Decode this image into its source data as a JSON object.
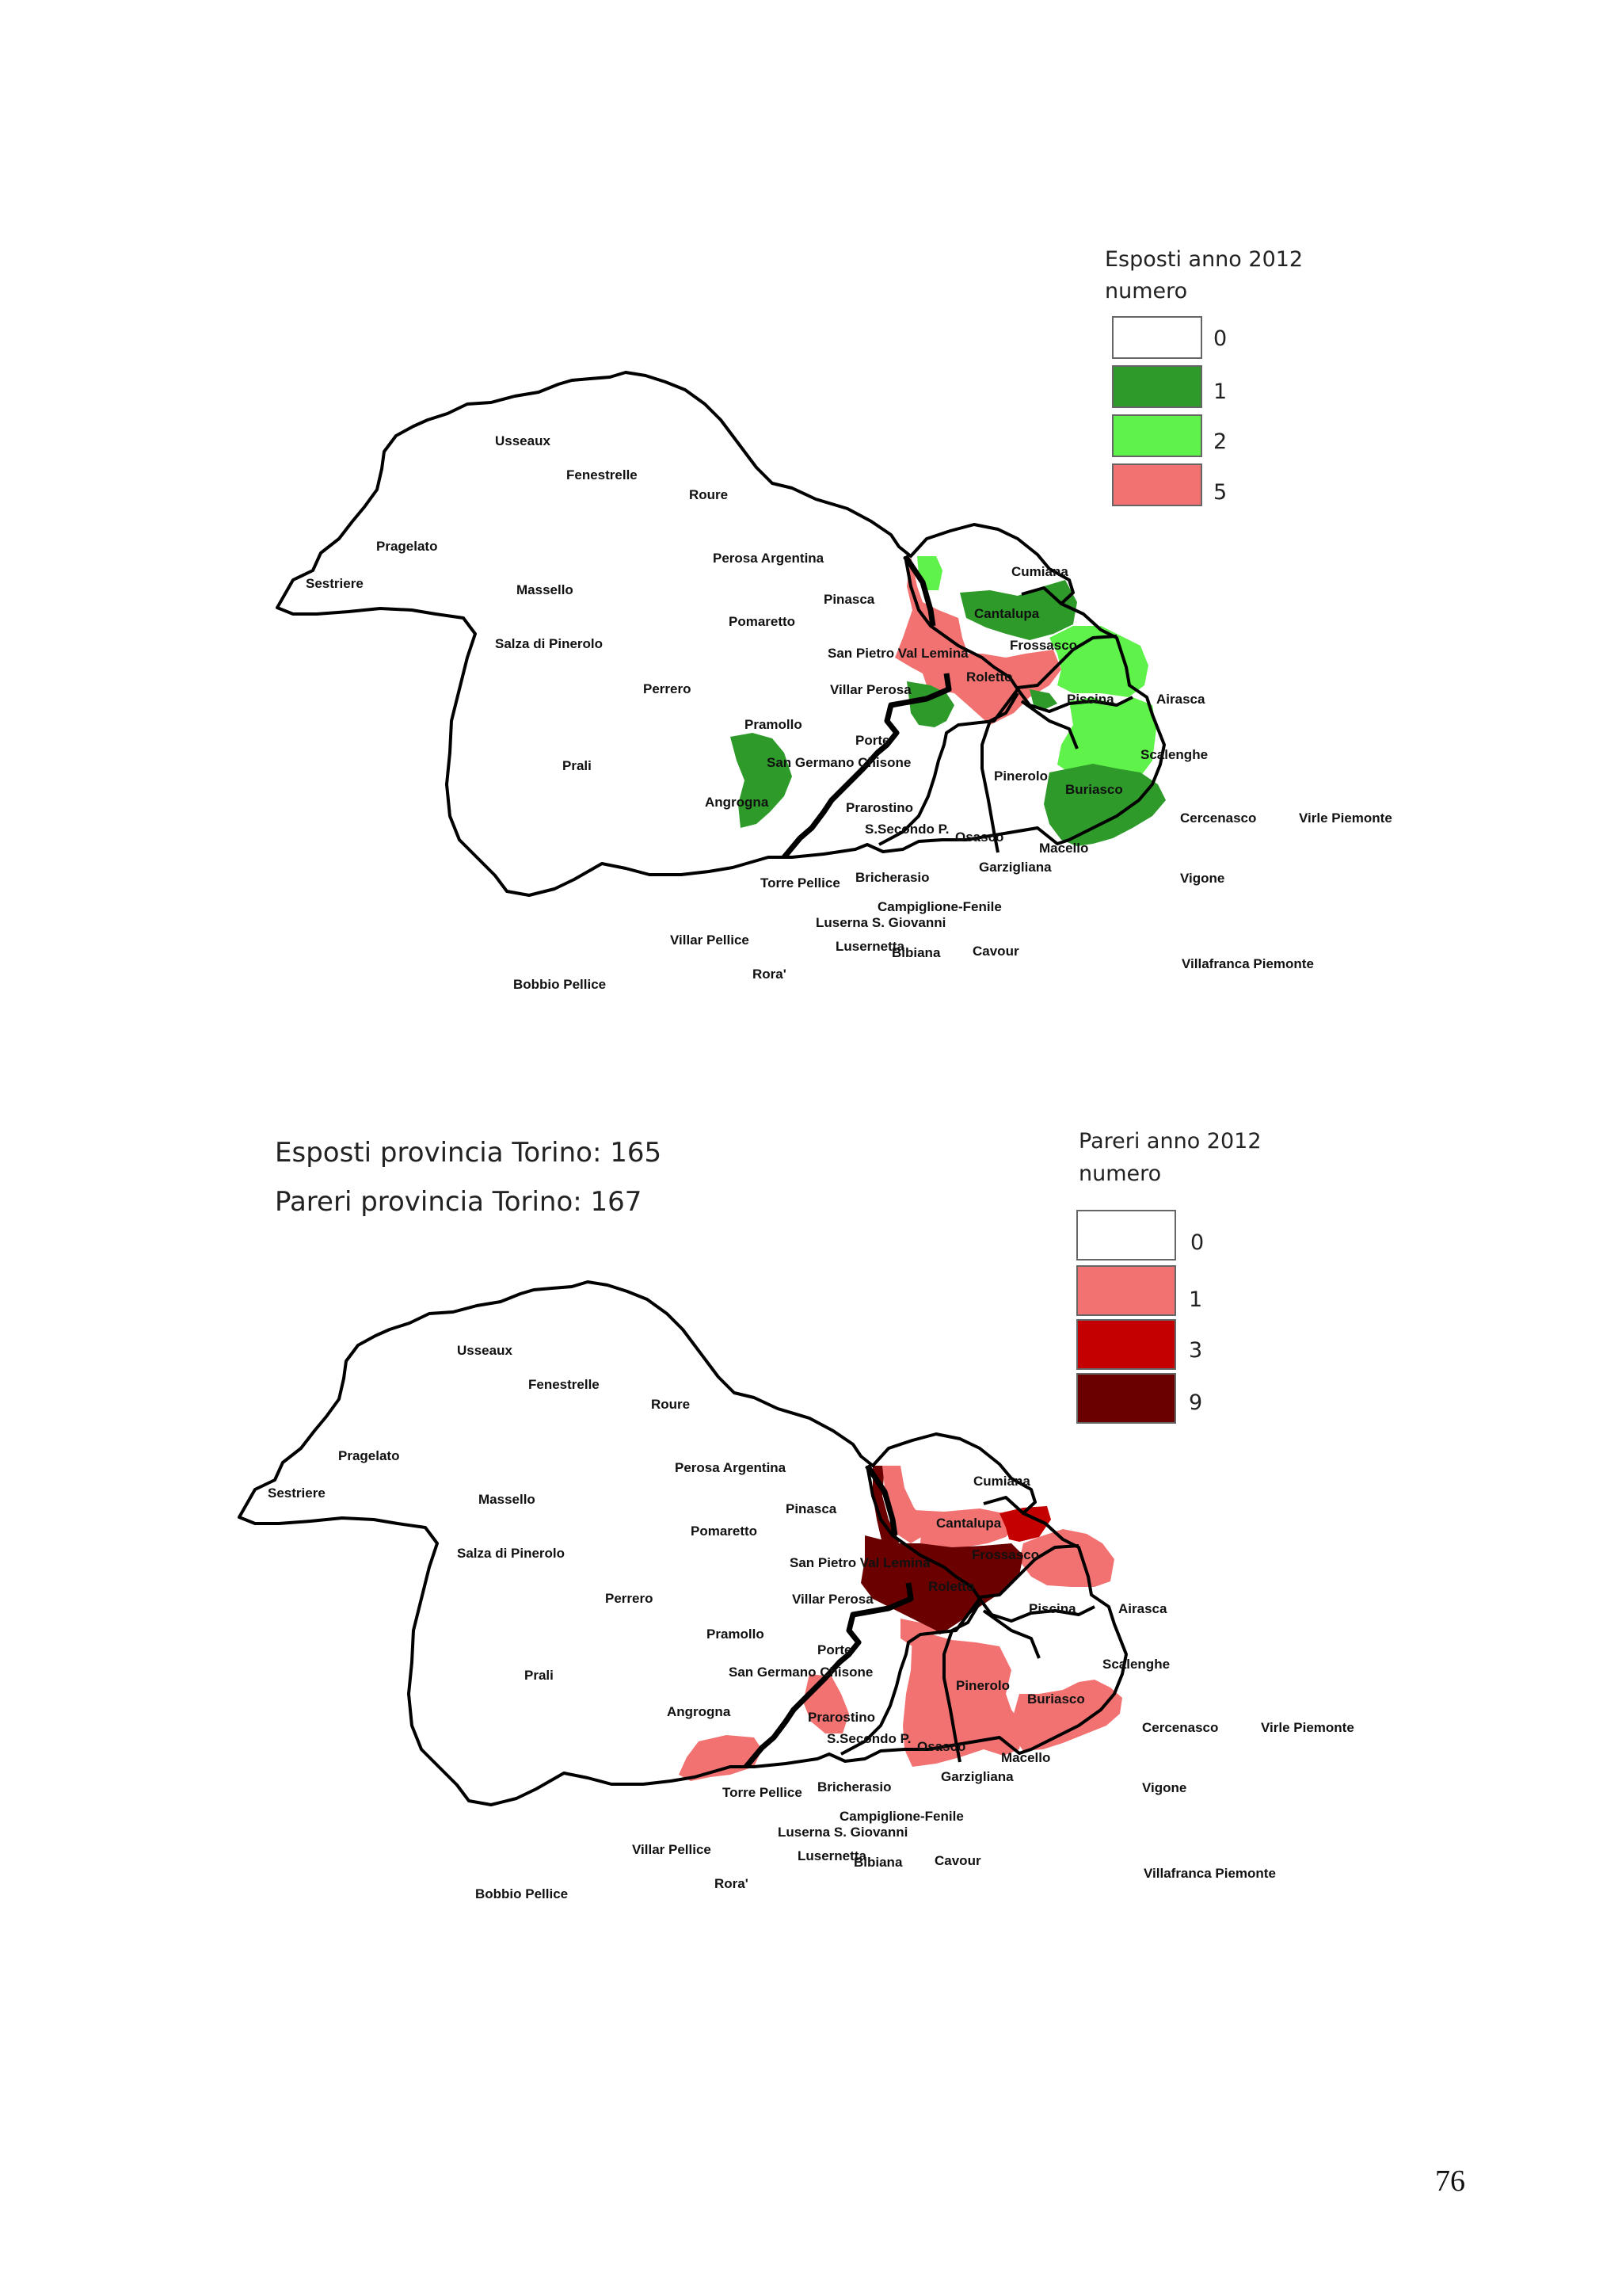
{
  "map1": {
    "legend": {
      "title_line1": "Esposti anno 2012",
      "title_line2": "numero",
      "items": [
        {
          "value": "0",
          "color": "#ffffff"
        },
        {
          "value": "1",
          "color": "#2e9a2a"
        },
        {
          "value": "2",
          "color": "#5ef24a"
        },
        {
          "value": "5",
          "color": "#f27272"
        }
      ]
    },
    "regions": {
      "pinerolo": "#f27272",
      "cantalupa": "#f27272",
      "frossasco": "#2e9a2a",
      "roletto_green": "#2e9a2a",
      "cumiana_piece": "#5ef24a",
      "scalenghe": "#5ef24a",
      "vigone": "#5ef24a",
      "villafranca": "#2e9a2a",
      "torre_pellice": "#2e9a2a",
      "prarostino": "#2e9a2a",
      "buriasco": "#2e9a2a"
    }
  },
  "map2": {
    "legend": {
      "title_line1": "Pareri anno 2012",
      "title_line2": "numero",
      "items": [
        {
          "value": "0",
          "color": "#ffffff"
        },
        {
          "value": "1",
          "color": "#f27272"
        },
        {
          "value": "3",
          "color": "#c40000"
        },
        {
          "value": "9",
          "color": "#6b0000"
        }
      ]
    },
    "regions": {
      "pinerolo": "#6b0000",
      "cantalupa_strip": "#6b0000",
      "san_pietro": "#f27272",
      "frossasco": "#f27272",
      "piscina": "#c40000",
      "scalenghe": "#f27272",
      "cavour": "#f27272",
      "villafranca": "#f27272",
      "rora": "#f27272",
      "bricherasio": "#f27272",
      "osasco": "#f27272"
    }
  },
  "labels": [
    "Usseaux",
    "Fenestrelle",
    "Roure",
    "Pragelato",
    "Sestriere",
    "Massello",
    "Salza di Pinerolo",
    "Perosa Argentina",
    "Pinasca",
    "Pomaretto",
    "San Pietro Val Lemina",
    "Perrero",
    "Villar Perosa",
    "Pramollo",
    "Porte",
    "San Germano Chisone",
    "Prali",
    "Angrogna",
    "Prarostino",
    "S.Secondo P.",
    "Osasco",
    "Torre Pellice",
    "Bricherasio",
    "Garzigliana",
    "Campiglione-Fenile",
    "Luserna S. Giovanni",
    "Lusernetta",
    "Bibiana",
    "Villar Pellice",
    "Rora'",
    "Bobbio Pellice",
    "Cavour",
    "Cumiana",
    "Cantalupa",
    "Frossasco",
    "Roletto",
    "Piscina",
    "Airasca",
    "Scalenghe",
    "Pinerolo",
    "Buriasco",
    "Cercenasco",
    "Virle Piemonte",
    "Macello",
    "Vigone",
    "Villafranca Piemonte"
  ],
  "summary": {
    "esposti": "Esposti provincia Torino: 165",
    "pareri": "Pareri provincia Torino: 167"
  },
  "page_number": "76"
}
